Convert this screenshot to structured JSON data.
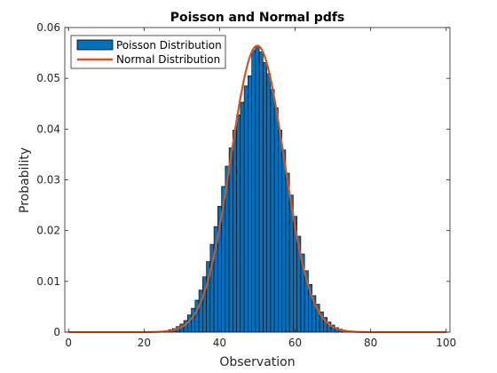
{
  "chart_data": {
    "type": "bar",
    "title": "Poisson and Normal pdfs",
    "xlabel": "Observation",
    "ylabel": "Probability",
    "xlim": [
      -1,
      101
    ],
    "ylim": [
      0,
      0.06
    ],
    "xticks": [
      0,
      20,
      40,
      60,
      80,
      100
    ],
    "yticks": [
      0,
      0.01,
      0.02,
      0.03,
      0.04,
      0.05,
      0.06
    ],
    "ytick_labels": [
      "0",
      "0.01",
      "0.02",
      "0.03",
      "0.04",
      "0.05",
      "0.06"
    ],
    "grid": false,
    "legend_position": "top-left",
    "x": [
      0,
      1,
      2,
      3,
      4,
      5,
      6,
      7,
      8,
      9,
      10,
      11,
      12,
      13,
      14,
      15,
      16,
      17,
      18,
      19,
      20,
      21,
      22,
      23,
      24,
      25,
      26,
      27,
      28,
      29,
      30,
      31,
      32,
      33,
      34,
      35,
      36,
      37,
      38,
      39,
      40,
      41,
      42,
      43,
      44,
      45,
      46,
      47,
      48,
      49,
      50,
      51,
      52,
      53,
      54,
      55,
      56,
      57,
      58,
      59,
      60,
      61,
      62,
      63,
      64,
      65,
      66,
      67,
      68,
      69,
      70,
      71,
      72,
      73,
      74,
      75,
      76,
      77,
      78,
      79,
      80,
      81,
      82,
      83,
      84,
      85,
      86,
      87,
      88,
      89,
      90,
      91,
      92,
      93,
      94,
      95,
      96,
      97,
      98,
      99,
      100
    ],
    "series": [
      {
        "name": "Poisson Distribution",
        "kind": "bar",
        "color": "#0072BD",
        "values": [
          0,
          0,
          0,
          0,
          0,
          0,
          0,
          0,
          0,
          0,
          0,
          0,
          0,
          0,
          0,
          0,
          0,
          0,
          0,
          0,
          0,
          0,
          0,
          0,
          0.0001,
          0.0002,
          0.0003,
          0.0005,
          0.0007,
          0.0011,
          0.0016,
          0.0023,
          0.0034,
          0.0047,
          0.0063,
          0.0083,
          0.0109,
          0.0139,
          0.0173,
          0.0208,
          0.0248,
          0.0287,
          0.0327,
          0.0363,
          0.0398,
          0.0428,
          0.0453,
          0.0485,
          0.0505,
          0.0555,
          0.0563,
          0.0552,
          0.0531,
          0.0509,
          0.0478,
          0.0442,
          0.0398,
          0.0359,
          0.0313,
          0.027,
          0.0228,
          0.0189,
          0.0154,
          0.0121,
          0.0094,
          0.0072,
          0.0055,
          0.004,
          0.0029,
          0.002,
          0.0014,
          0.0009,
          0.0006,
          0.0004,
          0.0003,
          0.0002,
          0.0001,
          0.0001,
          0,
          0,
          0,
          0,
          0,
          0,
          0,
          0,
          0,
          0,
          0,
          0,
          0,
          0,
          0,
          0,
          0,
          0,
          0,
          0,
          0,
          0,
          0
        ]
      },
      {
        "name": "Normal Distribution",
        "kind": "line",
        "color": "#D95319",
        "mean": 50,
        "sd": 7.0711
      }
    ]
  }
}
